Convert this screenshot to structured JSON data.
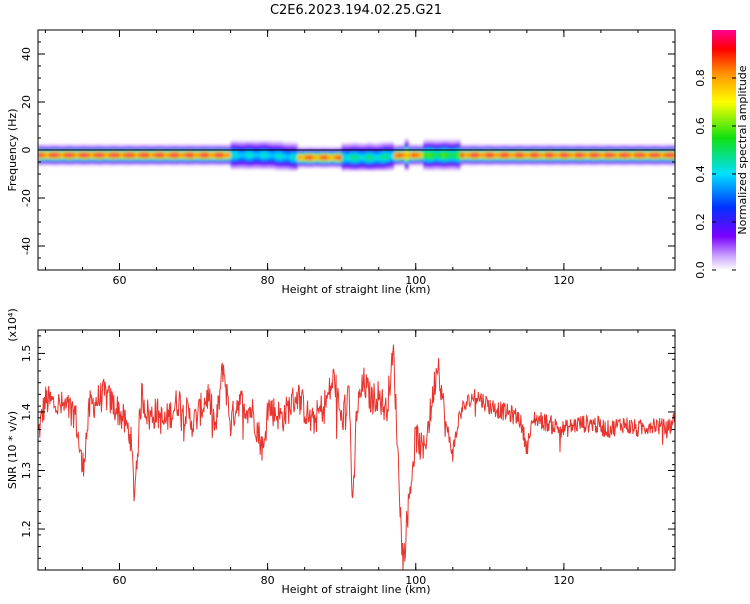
{
  "title": "C2E6.2023.194.02.25.G21",
  "colorbar": {
    "label": "Normalized spectral amplitude",
    "ticks": [
      "0.0",
      "0.2",
      "0.4",
      "0.6",
      "0.8"
    ],
    "colormap": "rainbow (white-violet-blue-cyan-green-yellow-orange-red-magenta)"
  },
  "chart_data": [
    {
      "type": "heatmap",
      "xlabel": "Height of straight line (km)",
      "ylabel": "Frequency (Hz)",
      "xlim": [
        49,
        135
      ],
      "ylim": [
        -50,
        50
      ],
      "xticks": [
        "60",
        "80",
        "100",
        "120"
      ],
      "yticks": [
        "-40",
        "-20",
        "0",
        "20",
        "40"
      ],
      "band_center_hz": [
        [
          49,
          -2
        ],
        [
          60,
          -2
        ],
        [
          70,
          -2
        ],
        [
          76,
          -2
        ],
        [
          80,
          -2
        ],
        [
          84,
          -3
        ],
        [
          88,
          -3
        ],
        [
          90,
          -3
        ],
        [
          95,
          -3
        ],
        [
          98,
          -2
        ],
        [
          102,
          -2
        ],
        [
          110,
          -2
        ],
        [
          120,
          -2
        ],
        [
          130,
          -2
        ],
        [
          135,
          -2
        ]
      ],
      "peak_amplitude_segments": [
        [
          49,
          75,
          1.0
        ],
        [
          75,
          84,
          0.45
        ],
        [
          84,
          90,
          0.95
        ],
        [
          90,
          97,
          0.5
        ],
        [
          97,
          101,
          0.95
        ],
        [
          101,
          106,
          0.6
        ],
        [
          106,
          135,
          1.0
        ]
      ]
    },
    {
      "type": "line",
      "xlabel": "Height of straight line (km)",
      "ylabel": "SNR (10 * v/v)",
      "y_multiplier": "(x10⁴)",
      "xlim": [
        49,
        135
      ],
      "ylim": [
        1.13,
        1.54
      ],
      "xticks": [
        "60",
        "80",
        "100",
        "120"
      ],
      "yticks": [
        "1.2",
        "1.3",
        "1.4",
        "1.5"
      ],
      "color": "#e8342e",
      "series": [
        {
          "x": [
            49,
            50,
            52,
            54,
            55,
            56,
            58,
            60,
            61.5,
            62,
            63,
            64,
            65,
            66,
            68,
            70,
            72,
            73,
            74,
            75,
            76,
            78,
            79.5,
            80,
            82,
            84,
            86,
            88,
            89,
            90,
            91,
            91.5,
            92,
            93,
            94,
            95,
            96,
            97,
            98,
            98.3,
            99,
            100,
            101,
            102,
            103,
            104,
            105,
            106,
            108,
            110,
            112,
            114,
            115,
            116,
            118,
            120,
            122,
            124,
            126,
            128,
            130,
            132,
            134,
            135
          ],
          "y": [
            1.36,
            1.42,
            1.41,
            1.4,
            1.3,
            1.41,
            1.43,
            1.4,
            1.36,
            1.26,
            1.43,
            1.39,
            1.4,
            1.38,
            1.42,
            1.38,
            1.43,
            1.37,
            1.48,
            1.38,
            1.42,
            1.4,
            1.33,
            1.41,
            1.39,
            1.43,
            1.38,
            1.42,
            1.46,
            1.38,
            1.44,
            1.22,
            1.4,
            1.45,
            1.42,
            1.43,
            1.4,
            1.5,
            1.21,
            1.14,
            1.24,
            1.36,
            1.33,
            1.4,
            1.49,
            1.38,
            1.33,
            1.4,
            1.43,
            1.41,
            1.4,
            1.39,
            1.34,
            1.39,
            1.38,
            1.37,
            1.38,
            1.38,
            1.37,
            1.38,
            1.37,
            1.38,
            1.37,
            1.39
          ]
        }
      ]
    }
  ]
}
